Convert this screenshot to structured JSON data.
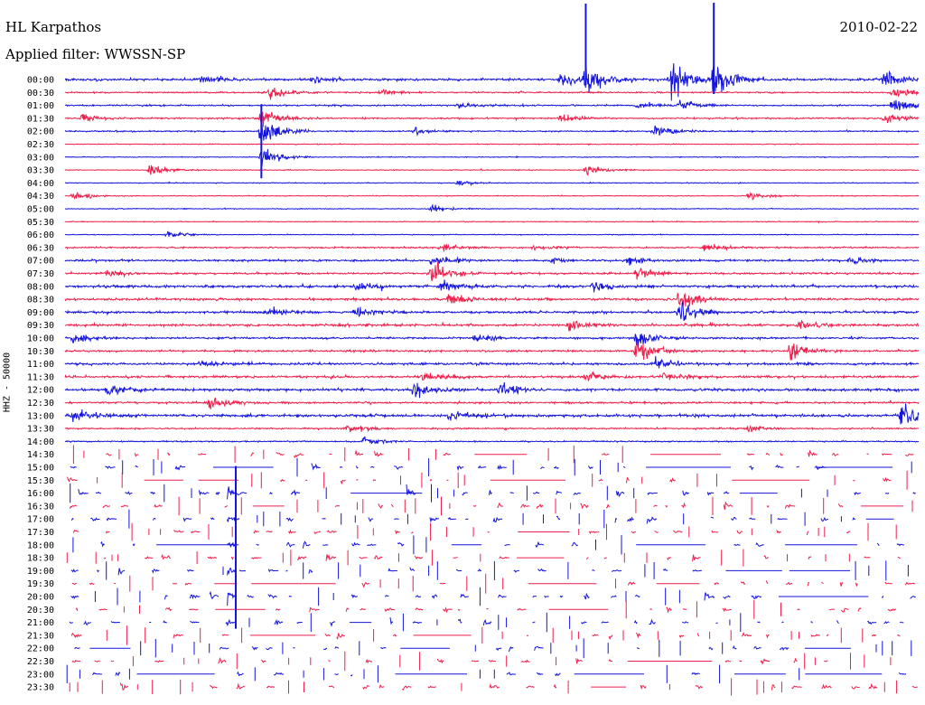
{
  "header": {
    "station": "HL Karpathos",
    "filter": "Applied filter: WWSSN-SP",
    "date": "2010-02-22"
  },
  "colors": {
    "blue": "#1414dc",
    "red": "#f01e4a"
  },
  "chart_data": {
    "type": "line",
    "title": "HL Karpathos",
    "subtitle": "Applied filter: WWSSN-SP",
    "date": "2010-02-22",
    "ylabel": "HHZ - 50000",
    "row_minutes": 30,
    "trace_colors": [
      "blue",
      "red"
    ],
    "rows": [
      {
        "label": "00:00",
        "color": "blue",
        "mode": "continuous",
        "amp": 0.55,
        "events": [
          {
            "t": 0.16,
            "a": 1.0
          },
          {
            "t": 0.29,
            "a": 0.8
          },
          {
            "t": 0.58,
            "a": 2.2
          },
          {
            "t": 0.61,
            "a": 3.4
          },
          {
            "t": 0.71,
            "a": 6.5
          },
          {
            "t": 0.76,
            "a": 6.0
          },
          {
            "t": 0.96,
            "a": 2.5
          }
        ]
      },
      {
        "label": "00:30",
        "color": "red",
        "mode": "continuous",
        "amp": 0.35,
        "events": [
          {
            "t": 0.24,
            "a": 1.6
          },
          {
            "t": 0.37,
            "a": 0.7
          },
          {
            "t": 0.97,
            "a": 1.5
          }
        ]
      },
      {
        "label": "01:00",
        "color": "blue",
        "mode": "continuous",
        "amp": 0.38,
        "events": [
          {
            "t": 0.46,
            "a": 0.7
          },
          {
            "t": 0.67,
            "a": 0.9
          },
          {
            "t": 0.72,
            "a": 1.6
          },
          {
            "t": 0.97,
            "a": 2.2
          }
        ]
      },
      {
        "label": "01:30",
        "color": "red",
        "mode": "continuous",
        "amp": 0.35,
        "events": [
          {
            "t": 0.02,
            "a": 1.0
          },
          {
            "t": 0.23,
            "a": 2.8
          },
          {
            "t": 0.58,
            "a": 1.2
          },
          {
            "t": 0.96,
            "a": 1.2
          }
        ]
      },
      {
        "label": "02:00",
        "color": "blue",
        "mode": "continuous",
        "amp": 0.3,
        "events": [
          {
            "t": 0.23,
            "a": 4.0
          },
          {
            "t": 0.41,
            "a": 0.9
          },
          {
            "t": 0.69,
            "a": 2.0
          }
        ]
      },
      {
        "label": "02:30",
        "color": "red",
        "mode": "continuous",
        "amp": 0.2,
        "events": []
      },
      {
        "label": "03:00",
        "color": "blue",
        "mode": "continuous",
        "amp": 0.2,
        "events": [
          {
            "t": 0.23,
            "a": 2.6
          }
        ]
      },
      {
        "label": "03:30",
        "color": "red",
        "mode": "continuous",
        "amp": 0.2,
        "events": [
          {
            "t": 0.1,
            "a": 1.4
          },
          {
            "t": 0.61,
            "a": 1.3
          }
        ]
      },
      {
        "label": "04:00",
        "color": "blue",
        "mode": "continuous",
        "amp": 0.2,
        "events": [
          {
            "t": 0.46,
            "a": 0.7
          }
        ]
      },
      {
        "label": "04:30",
        "color": "red",
        "mode": "continuous",
        "amp": 0.2,
        "events": [
          {
            "t": 0.01,
            "a": 1.0
          },
          {
            "t": 0.8,
            "a": 1.1
          }
        ]
      },
      {
        "label": "05:00",
        "color": "blue",
        "mode": "continuous",
        "amp": 0.2,
        "events": [
          {
            "t": 0.43,
            "a": 1.0
          }
        ]
      },
      {
        "label": "05:30",
        "color": "red",
        "mode": "continuous",
        "amp": 0.2,
        "events": []
      },
      {
        "label": "06:00",
        "color": "blue",
        "mode": "continuous",
        "amp": 0.2,
        "events": [
          {
            "t": 0.12,
            "a": 0.8
          }
        ]
      },
      {
        "label": "06:30",
        "color": "red",
        "mode": "continuous",
        "amp": 0.35,
        "events": [
          {
            "t": 0.44,
            "a": 1.2
          },
          {
            "t": 0.55,
            "a": 0.8
          },
          {
            "t": 0.75,
            "a": 1.0
          }
        ]
      },
      {
        "label": "07:00",
        "color": "blue",
        "mode": "continuous",
        "amp": 0.45,
        "events": [
          {
            "t": 0.43,
            "a": 1.6
          },
          {
            "t": 0.57,
            "a": 0.8
          },
          {
            "t": 0.66,
            "a": 1.2
          },
          {
            "t": 0.92,
            "a": 1.0
          }
        ]
      },
      {
        "label": "07:30",
        "color": "red",
        "mode": "continuous",
        "amp": 0.45,
        "events": [
          {
            "t": 0.05,
            "a": 0.9
          },
          {
            "t": 0.43,
            "a": 3.2
          },
          {
            "t": 0.67,
            "a": 1.3
          }
        ]
      },
      {
        "label": "08:00",
        "color": "blue",
        "mode": "continuous",
        "amp": 0.6,
        "events": [
          {
            "t": 0.34,
            "a": 1.2
          },
          {
            "t": 0.44,
            "a": 2.0
          },
          {
            "t": 0.62,
            "a": 1.4
          }
        ]
      },
      {
        "label": "08:30",
        "color": "red",
        "mode": "continuous",
        "amp": 0.55,
        "events": [
          {
            "t": 0.45,
            "a": 1.5
          },
          {
            "t": 0.72,
            "a": 3.0
          }
        ]
      },
      {
        "label": "09:00",
        "color": "blue",
        "mode": "continuous",
        "amp": 0.55,
        "events": [
          {
            "t": 0.24,
            "a": 1.2
          },
          {
            "t": 0.34,
            "a": 1.4
          },
          {
            "t": 0.72,
            "a": 3.2
          }
        ]
      },
      {
        "label": "09:30",
        "color": "red",
        "mode": "continuous",
        "amp": 0.55,
        "events": [
          {
            "t": 0.59,
            "a": 1.4
          },
          {
            "t": 0.86,
            "a": 1.0
          }
        ]
      },
      {
        "label": "10:00",
        "color": "blue",
        "mode": "continuous",
        "amp": 0.45,
        "events": [
          {
            "t": 0.01,
            "a": 1.2
          },
          {
            "t": 0.48,
            "a": 1.0
          },
          {
            "t": 0.67,
            "a": 2.4
          }
        ]
      },
      {
        "label": "10:30",
        "color": "red",
        "mode": "continuous",
        "amp": 0.45,
        "events": [
          {
            "t": 0.67,
            "a": 3.2
          },
          {
            "t": 0.85,
            "a": 2.6
          }
        ]
      },
      {
        "label": "11:00",
        "color": "blue",
        "mode": "continuous",
        "amp": 0.55,
        "events": [
          {
            "t": 0.16,
            "a": 1.0
          },
          {
            "t": 0.69,
            "a": 1.6
          }
        ]
      },
      {
        "label": "11:30",
        "color": "red",
        "mode": "continuous",
        "amp": 0.55,
        "events": [
          {
            "t": 0.42,
            "a": 1.2
          },
          {
            "t": 0.61,
            "a": 1.2
          },
          {
            "t": 0.7,
            "a": 1.4
          }
        ]
      },
      {
        "label": "12:00",
        "color": "blue",
        "mode": "continuous",
        "amp": 0.6,
        "events": [
          {
            "t": 0.05,
            "a": 1.3
          },
          {
            "t": 0.41,
            "a": 2.2
          },
          {
            "t": 0.51,
            "a": 1.8
          }
        ]
      },
      {
        "label": "12:30",
        "color": "red",
        "mode": "continuous",
        "amp": 0.45,
        "events": [
          {
            "t": 0.17,
            "a": 2.0
          }
        ]
      },
      {
        "label": "13:00",
        "color": "blue",
        "mode": "continuous",
        "amp": 0.65,
        "events": [
          {
            "t": 0.01,
            "a": 1.6
          },
          {
            "t": 0.45,
            "a": 1.2
          },
          {
            "t": 0.98,
            "a": 3.6
          }
        ]
      },
      {
        "label": "13:30",
        "color": "red",
        "mode": "continuous",
        "amp": 0.35,
        "events": [
          {
            "t": 0.33,
            "a": 1.2
          },
          {
            "t": 0.8,
            "a": 0.9
          }
        ]
      },
      {
        "label": "14:00",
        "color": "blue",
        "mode": "continuous",
        "amp": 0.3,
        "events": [
          {
            "t": 0.35,
            "a": 1.0
          }
        ]
      },
      {
        "label": "14:30",
        "color": "red",
        "mode": "sparse",
        "events": []
      },
      {
        "label": "15:00",
        "color": "blue",
        "mode": "sparse",
        "events": [
          {
            "t": 0.88,
            "a": 1.5
          }
        ]
      },
      {
        "label": "15:30",
        "color": "red",
        "mode": "sparse",
        "events": []
      },
      {
        "label": "16:00",
        "color": "blue",
        "mode": "sparse",
        "events": [
          {
            "t": 0.4,
            "a": 3.2
          },
          {
            "t": 0.19,
            "a": 2.5
          }
        ]
      },
      {
        "label": "16:30",
        "color": "red",
        "mode": "sparse",
        "events": []
      },
      {
        "label": "17:00",
        "color": "blue",
        "mode": "sparse",
        "events": [
          {
            "t": 0.19,
            "a": 2.5
          }
        ]
      },
      {
        "label": "17:30",
        "color": "red",
        "mode": "sparse",
        "events": []
      },
      {
        "label": "18:00",
        "color": "blue",
        "mode": "sparse",
        "events": [
          {
            "t": 0.19,
            "a": 2.5
          }
        ]
      },
      {
        "label": "18:30",
        "color": "red",
        "mode": "sparse",
        "events": []
      },
      {
        "label": "19:00",
        "color": "blue",
        "mode": "sparse",
        "events": [
          {
            "t": 0.19,
            "a": 2.5
          }
        ]
      },
      {
        "label": "19:30",
        "color": "red",
        "mode": "sparse",
        "events": []
      },
      {
        "label": "20:00",
        "color": "blue",
        "mode": "sparse",
        "events": [
          {
            "t": 0.19,
            "a": 2.5
          }
        ]
      },
      {
        "label": "20:30",
        "color": "red",
        "mode": "sparse",
        "events": []
      },
      {
        "label": "21:00",
        "color": "blue",
        "mode": "sparse",
        "events": []
      },
      {
        "label": "21:30",
        "color": "red",
        "mode": "sparse",
        "events": []
      },
      {
        "label": "22:00",
        "color": "blue",
        "mode": "sparse",
        "events": []
      },
      {
        "label": "22:30",
        "color": "red",
        "mode": "sparse",
        "events": []
      },
      {
        "label": "23:00",
        "color": "blue",
        "mode": "sparse",
        "events": []
      },
      {
        "label": "23:30",
        "color": "red",
        "mode": "sparse",
        "events": []
      }
    ]
  }
}
